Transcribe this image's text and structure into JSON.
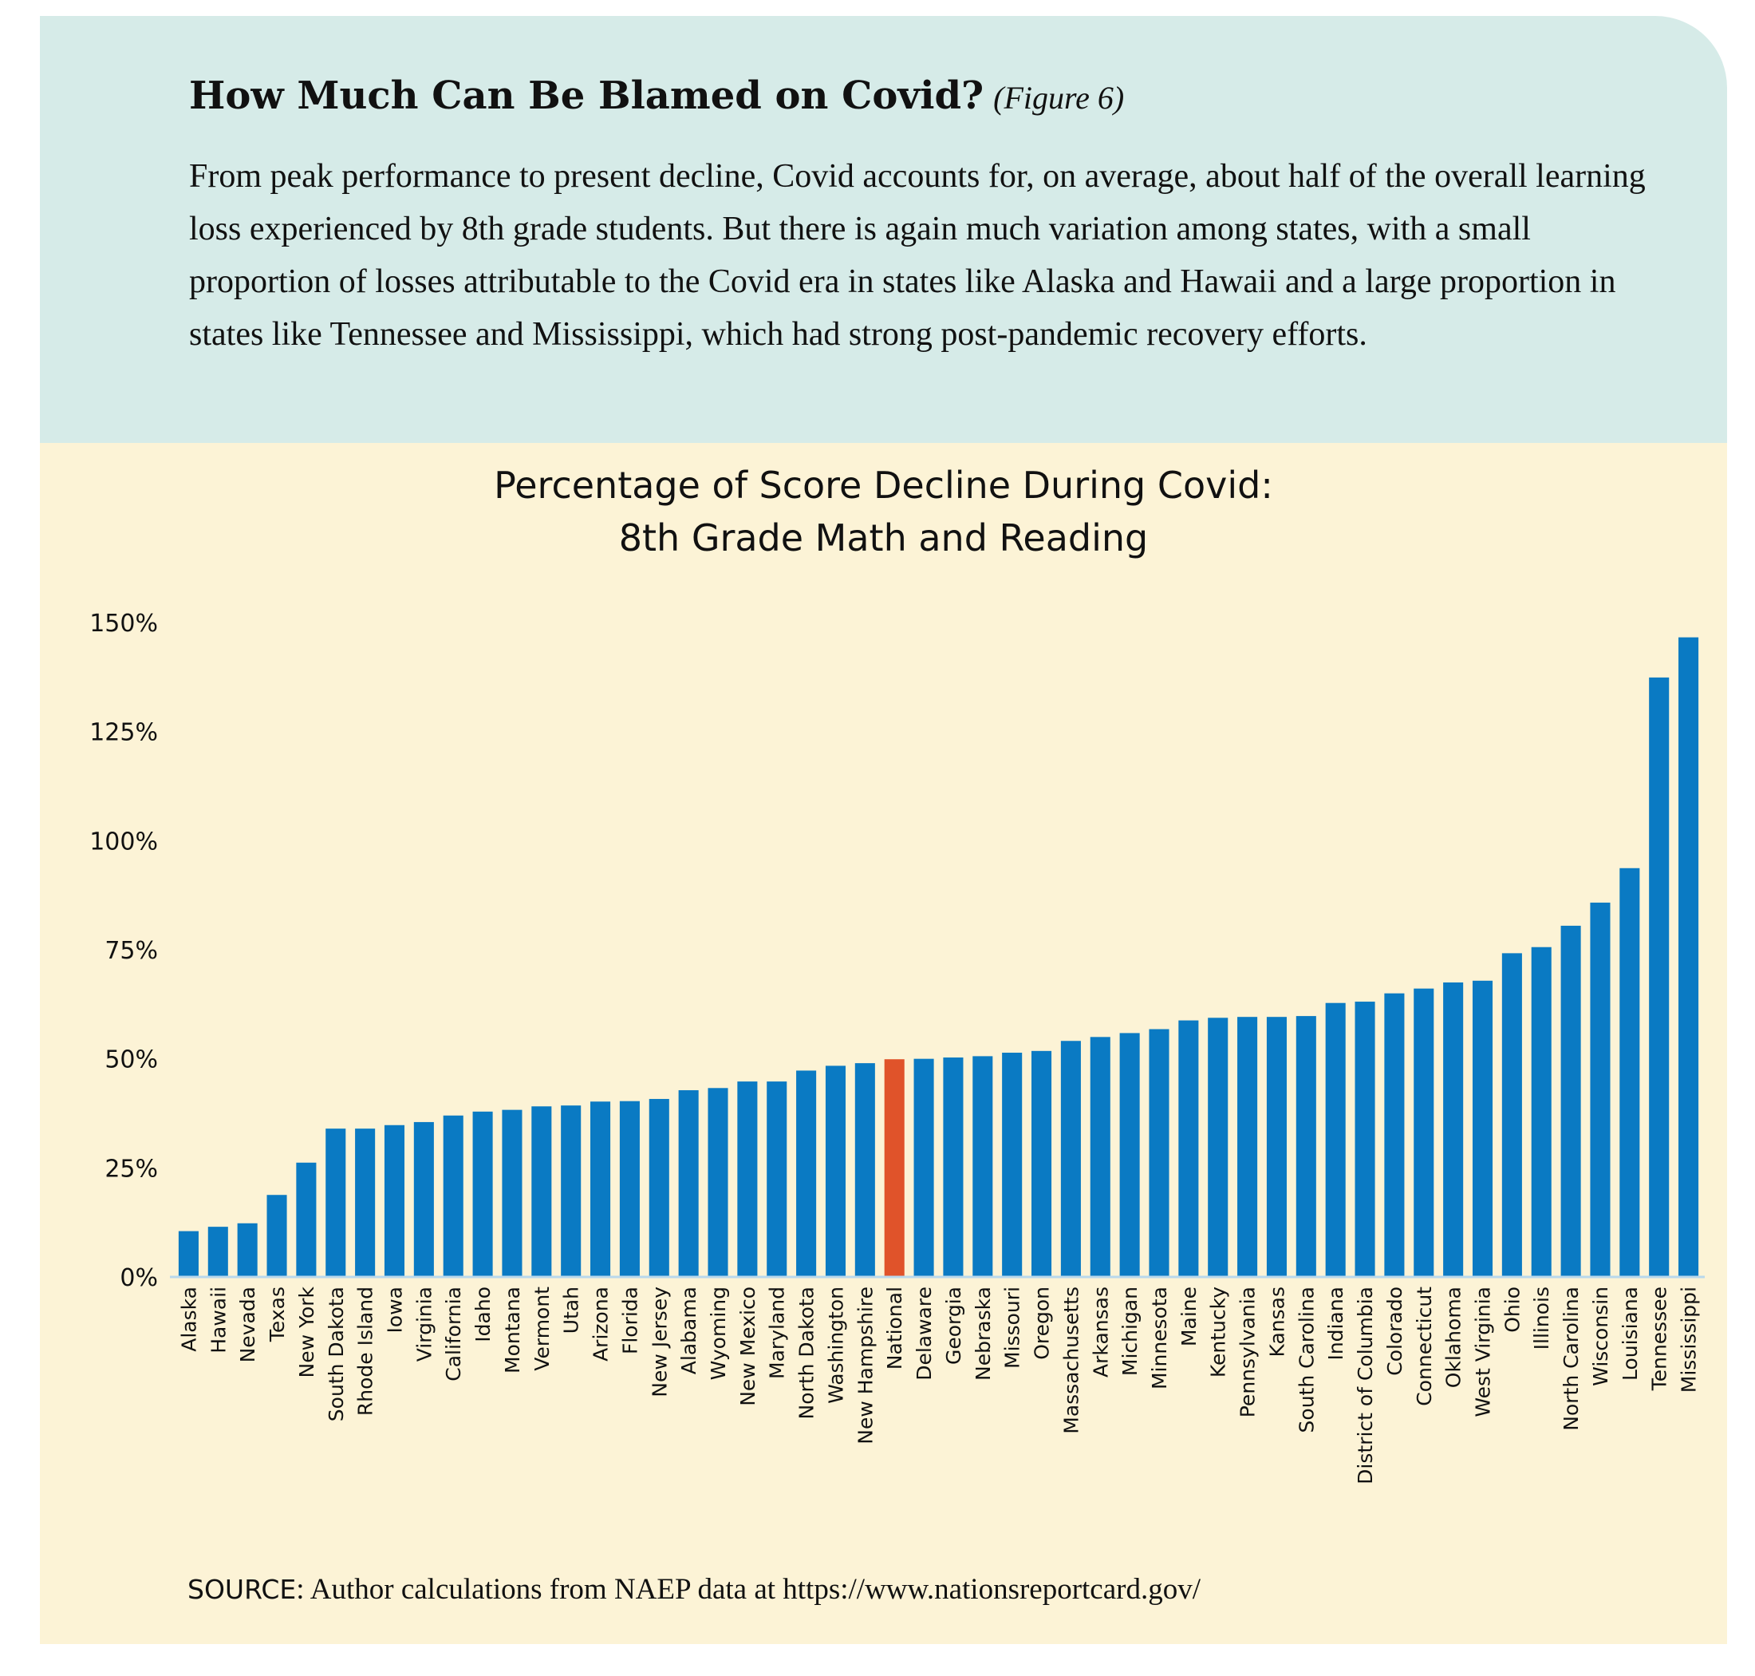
{
  "header": {
    "title": "How Much Can Be Blamed on Covid?",
    "figure_ref": "(Figure 6)",
    "description": "From peak performance to present decline, Covid accounts for, on average, about half of the overall learning loss experienced by 8th grade students. But there is again much variation among states, with a small proportion of losses attributable to the Covid era in states like Alaska and Hawaii and a large proportion in states like Tennessee and Mississippi, which had strong post-pandemic recovery efforts."
  },
  "source": {
    "label": "SOURCE",
    "text": ": Author calculations from NAEP data at https://www.nationsreportcard.gov/"
  },
  "colors": {
    "header_bg": "#d6ebe8",
    "chart_bg": "#fcf3d6",
    "bar": "#0a7ac3",
    "highlight": "#e0532a"
  },
  "chart_data": {
    "type": "bar",
    "title_lines": [
      "Percentage of Score Decline During Covid:",
      "8th Grade Math and Reading"
    ],
    "xlabel": "",
    "ylabel": "",
    "ylim": [
      0,
      150
    ],
    "yticks": [
      0,
      25,
      50,
      75,
      100,
      125,
      150
    ],
    "ytick_labels": [
      "0%",
      "25%",
      "50%",
      "75%",
      "100%",
      "125%",
      "150%"
    ],
    "grid": false,
    "highlight_category": "National",
    "categories": [
      "Alaska",
      "Hawaii",
      "Nevada",
      "Texas",
      "New York",
      "South Dakota",
      "Rhode Island",
      "Iowa",
      "Virginia",
      "California",
      "Idaho",
      "Montana",
      "Vermont",
      "Utah",
      "Arizona",
      "Florida",
      "New Jersey",
      "Alabama",
      "Wyoming",
      "New Mexico",
      "Maryland",
      "North Dakota",
      "Washington",
      "New Hampshire",
      "National",
      "Delaware",
      "Georgia",
      "Nebraska",
      "Missouri",
      "Oregon",
      "Massachusetts",
      "Arkansas",
      "Michigan",
      "Minnesota",
      "Maine",
      "Kentucky",
      "Pennsylvania",
      "Kansas",
      "South Carolina",
      "Indiana",
      "District of Columbia",
      "Colorado",
      "Connecticut",
      "Oklahoma",
      "West Virginia",
      "Ohio",
      "Illinois",
      "North Carolina",
      "Wisconsin",
      "Louisiana",
      "Tennessee",
      "Mississippi"
    ],
    "values": [
      10.5,
      11.5,
      12.3,
      18.8,
      26.2,
      34,
      34,
      34.8,
      35.5,
      37,
      37.9,
      38.3,
      39.1,
      39.3,
      40.2,
      40.3,
      40.8,
      42.8,
      43.3,
      44.8,
      44.8,
      47.3,
      48.4,
      49,
      49.9,
      50,
      50.3,
      50.6,
      51.4,
      51.8,
      54.1,
      55,
      55.9,
      56.8,
      58.8,
      59.4,
      59.6,
      59.6,
      59.8,
      62.8,
      63.1,
      65,
      66.1,
      67.5,
      67.9,
      74.2,
      75.6,
      80.5,
      85.8,
      93.7,
      137.4,
      146.6
    ]
  }
}
